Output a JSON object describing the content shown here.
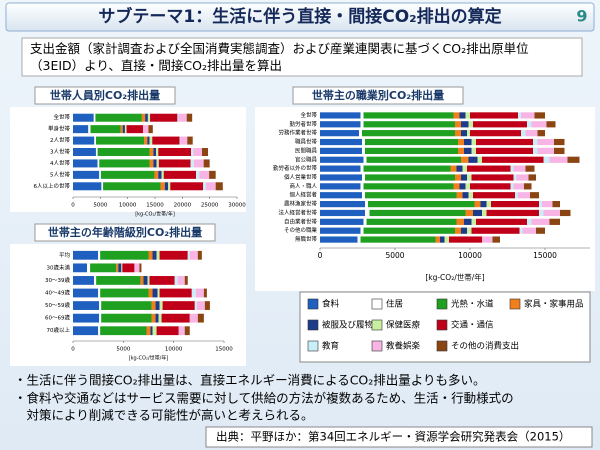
{
  "title": "サブテーマ1：生活に伴う直接・間接CO₂排出の算定",
  "page_number": "9",
  "intro": "支出金額（家計調査および全国消費実態調査）および産業連関表に基づくCO₂排出原単位（3EID）より、直接・間接CO₂排出量を算出",
  "legend": [
    {
      "name": "食料",
      "color": "#1f5fbf"
    },
    {
      "name": "住居",
      "color": "#ffffff"
    },
    {
      "name": "光熱・水道",
      "color": "#20a020"
    },
    {
      "name": "家具・家事用品",
      "color": "#f07f1e"
    },
    {
      "name": "被服及び履物",
      "color": "#1e3a8a"
    },
    {
      "name": "保健医療",
      "color": "#c8f0a0"
    },
    {
      "name": "交通・通信",
      "color": "#c00018"
    },
    {
      "name": "教育",
      "color": "#c8eef8"
    },
    {
      "name": "教養娯楽",
      "color": "#f8b4e4"
    },
    {
      "name": "その他の消費支出",
      "color": "#8b4513"
    }
  ],
  "chart_data": [
    {
      "type": "hbar-stacked",
      "title": "世帯人員別CO₂排出量",
      "x_label": "[kg-CO₂/世帯/年]",
      "categories": [
        "全世帯",
        "単身世帯",
        "2人世帯",
        "3人世帯",
        "4人世帯",
        "5人世帯",
        "6人以上の世帯"
      ],
      "xlim": [
        0,
        30000
      ],
      "xticks": [
        0,
        5000,
        10000,
        15000,
        20000,
        25000,
        30000
      ],
      "series": [
        {
          "values": [
            3800,
            2800,
            3900,
            4200,
            4500,
            4800,
            5200
          ]
        },
        {
          "values": [
            300,
            400,
            300,
            300,
            300,
            300,
            300
          ]
        },
        {
          "values": [
            8500,
            5500,
            8800,
            9500,
            9200,
            9800,
            10500
          ]
        },
        {
          "values": [
            600,
            400,
            600,
            700,
            700,
            700,
            800
          ]
        },
        {
          "values": [
            500,
            400,
            400,
            500,
            600,
            600,
            600
          ]
        },
        {
          "values": [
            400,
            300,
            500,
            400,
            400,
            400,
            400
          ]
        },
        {
          "values": [
            5000,
            3000,
            5000,
            6000,
            5800,
            5900,
            6000
          ]
        },
        {
          "values": [
            200,
            0,
            100,
            400,
            600,
            600,
            500
          ]
        },
        {
          "values": [
            1500,
            1000,
            1300,
            1600,
            1800,
            1800,
            1800
          ]
        },
        {
          "values": [
            1000,
            800,
            1000,
            1100,
            1100,
            1200,
            1300
          ]
        }
      ]
    },
    {
      "type": "hbar-stacked",
      "title": "世帯主の職業別CO₂排出量",
      "x_label": "[kg-CO₂/世帯/年]",
      "categories": [
        "全世帯",
        "勤労者世帯",
        "労務作業者世帯",
        "職員世帯",
        "民間職員",
        "官公職員",
        "勤労者以外の世帯",
        "個人営業世帯",
        "商人・職人",
        "個人経営者",
        "農林漁家世帯",
        "法人経営者世帯",
        "自由業者世帯",
        "その他の職業",
        "無職世帯"
      ],
      "xlim": [
        0,
        18000
      ],
      "xticks": [
        0,
        5000,
        10000,
        15000
      ],
      "series": [
        {
          "values": [
            2700,
            2700,
            2600,
            2800,
            2800,
            2900,
            2700,
            2800,
            2700,
            2800,
            3000,
            3000,
            2900,
            2700,
            2500
          ]
        },
        {
          "values": [
            200,
            200,
            200,
            200,
            200,
            200,
            200,
            200,
            200,
            200,
            200,
            300,
            200,
            200,
            200
          ]
        },
        {
          "values": [
            6000,
            6100,
            6200,
            6200,
            6200,
            6300,
            5800,
            6000,
            6000,
            6100,
            7100,
            6400,
            6000,
            6100,
            5000
          ]
        },
        {
          "values": [
            400,
            400,
            400,
            400,
            400,
            500,
            400,
            400,
            400,
            400,
            400,
            500,
            500,
            400,
            300
          ]
        },
        {
          "values": [
            400,
            500,
            400,
            500,
            500,
            600,
            400,
            400,
            400,
            400,
            400,
            600,
            500,
            400,
            300
          ]
        },
        {
          "values": [
            300,
            300,
            200,
            300,
            300,
            300,
            300,
            300,
            300,
            300,
            300,
            300,
            300,
            300,
            300
          ]
        },
        {
          "values": [
            3200,
            3600,
            3400,
            3800,
            3800,
            4100,
            2900,
            2800,
            2700,
            2800,
            3200,
            3500,
            3400,
            3200,
            2200
          ]
        },
        {
          "values": [
            200,
            300,
            300,
            300,
            300,
            400,
            200,
            200,
            200,
            200,
            200,
            300,
            300,
            200,
            0
          ]
        },
        {
          "values": [
            900,
            1000,
            800,
            1100,
            1100,
            1200,
            800,
            800,
            700,
            800,
            700,
            1100,
            1200,
            900,
            700
          ]
        },
        {
          "values": [
            700,
            600,
            500,
            700,
            700,
            800,
            600,
            500,
            500,
            600,
            500,
            700,
            700,
            600,
            500
          ]
        }
      ]
    },
    {
      "type": "hbar-stacked",
      "title": "世帯主の年齢階級別CO₂排出量",
      "x_label": "[kg-CO₂/世帯/年]",
      "categories": [
        "平均",
        "30歳未満",
        "30～39歳",
        "40～49歳",
        "50～59歳",
        "60～69歳",
        "70歳以上"
      ],
      "xlim": [
        0,
        15000
      ],
      "xticks": [
        0,
        5000,
        10000,
        15000
      ],
      "series": [
        {
          "values": [
            2500,
            1400,
            2100,
            2500,
            2600,
            2600,
            2500
          ]
        },
        {
          "values": [
            200,
            300,
            200,
            200,
            200,
            200,
            200
          ]
        },
        {
          "values": [
            4800,
            2600,
            4400,
            4800,
            5000,
            5000,
            4600
          ]
        },
        {
          "values": [
            400,
            200,
            300,
            400,
            400,
            400,
            400
          ]
        },
        {
          "values": [
            400,
            300,
            400,
            500,
            400,
            300,
            200
          ]
        },
        {
          "values": [
            300,
            100,
            200,
            200,
            300,
            300,
            400
          ]
        },
        {
          "values": [
            2800,
            1200,
            2500,
            3200,
            3200,
            2800,
            2200
          ]
        },
        {
          "values": [
            200,
            0,
            300,
            400,
            200,
            0,
            0
          ]
        },
        {
          "values": [
            800,
            500,
            700,
            800,
            800,
            800,
            600
          ]
        },
        {
          "values": [
            400,
            200,
            300,
            300,
            500,
            600,
            500
          ]
        }
      ]
    }
  ],
  "bullets": [
    "・生活に伴う間接CO₂排出量は、直接エネルギー消費によるCO₂排出量よりも多い。",
    "・食料や交通などはサービス需要に対して供給の方法が複数あるため、生活・行動様式の",
    "　対策により削減できる可能性が高いと考えられる。"
  ],
  "source": "出典：平野ほか：第34回エネルギー・資源学会研究発表会（2015）"
}
